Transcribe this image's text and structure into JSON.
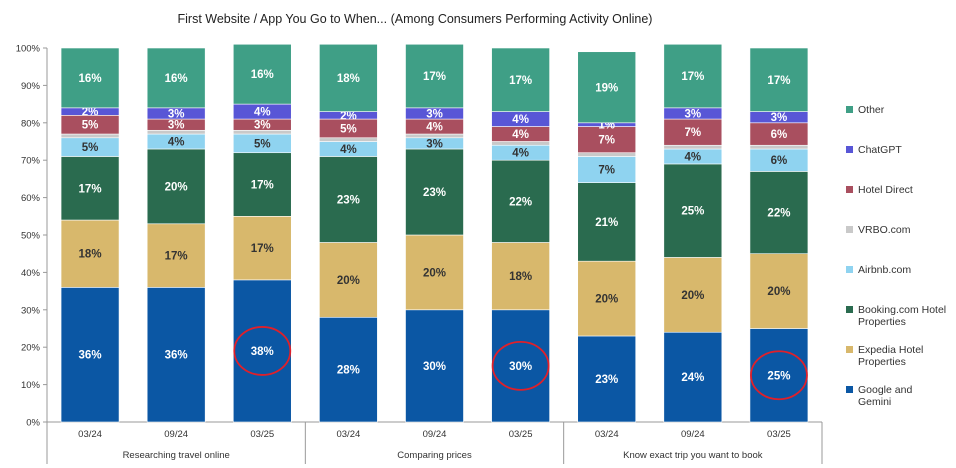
{
  "chart_data": {
    "type": "bar",
    "stacked": true,
    "title": "First Website / App You Go to When... (Among Consumers Performing Activity Online)",
    "ylim": [
      0,
      100
    ],
    "yticks": [
      "0%",
      "10%",
      "20%",
      "30%",
      "40%",
      "50%",
      "60%",
      "70%",
      "80%",
      "90%",
      "100%"
    ],
    "grid": false,
    "legend_position": "right",
    "groups": [
      {
        "label": "Researching travel online",
        "categories": [
          "03/24",
          "09/24",
          "03/25"
        ]
      },
      {
        "label": "Comparing prices",
        "categories": [
          "03/24",
          "09/24",
          "03/25"
        ]
      },
      {
        "label": "Know exact trip you want to book",
        "categories": [
          "03/24",
          "09/24",
          "03/25"
        ]
      }
    ],
    "series": [
      {
        "name": "Google and Gemini",
        "color": "#0b57a4",
        "label_color": "#ffffff",
        "values": [
          36,
          36,
          38,
          28,
          30,
          30,
          23,
          24,
          25
        ],
        "labels": [
          "36%",
          "36%",
          "38%",
          "28%",
          "30%",
          "30%",
          "23%",
          "24%",
          "25%"
        ]
      },
      {
        "name": "Expedia Hotel Properties",
        "color": "#d8b86c",
        "label_color": "#333333",
        "values": [
          18,
          17,
          17,
          20,
          20,
          18,
          20,
          20,
          20
        ],
        "labels": [
          "18%",
          "17%",
          "17%",
          "20%",
          "20%",
          "18%",
          "20%",
          "20%",
          "20%"
        ]
      },
      {
        "name": "Booking.com Hotel Properties",
        "color": "#2a6b4f",
        "label_color": "#ffffff",
        "values": [
          17,
          20,
          17,
          23,
          23,
          22,
          21,
          25,
          22
        ],
        "labels": [
          "17%",
          "20%",
          "17%",
          "23%",
          "23%",
          "22%",
          "21%",
          "25%",
          "22%"
        ]
      },
      {
        "name": "Airbnb.com",
        "color": "#8fd3f0",
        "label_color": "#333333",
        "values": [
          5,
          4,
          5,
          4,
          3,
          4,
          7,
          4,
          6
        ],
        "labels": [
          "5%",
          "4%",
          "5%",
          "4%",
          "3%",
          "4%",
          "7%",
          "4%",
          "6%"
        ]
      },
      {
        "name": "VRBO.com",
        "color": "#c9c9c9",
        "label_color": "#333333",
        "values": [
          1,
          1,
          1,
          1,
          1,
          1,
          1,
          1,
          1
        ],
        "labels": [
          "",
          "",
          "",
          "",
          "",
          "",
          "",
          "",
          ""
        ]
      },
      {
        "name": "Hotel Direct",
        "color": "#a94f5f",
        "label_color": "#ffffff",
        "values": [
          5,
          3,
          3,
          5,
          4,
          4,
          7,
          7,
          6
        ],
        "labels": [
          "5%",
          "3%",
          "3%",
          "5%",
          "4%",
          "4%",
          "7%",
          "7%",
          "6%"
        ]
      },
      {
        "name": "ChatGPT",
        "color": "#5856d6",
        "label_color": "#ffffff",
        "values": [
          2,
          3,
          4,
          2,
          3,
          4,
          1,
          3,
          3
        ],
        "labels": [
          "2%",
          "3%",
          "4%",
          "2%",
          "3%",
          "4%",
          "1%",
          "3%",
          "3%"
        ]
      },
      {
        "name": "Other",
        "color": "#3f9f86",
        "label_color": "#ffffff",
        "values": [
          16,
          16,
          16,
          18,
          17,
          17,
          19,
          17,
          17
        ],
        "labels": [
          "16%",
          "16%",
          "16%",
          "18%",
          "17%",
          "17%",
          "19%",
          "17%",
          "17%"
        ]
      }
    ],
    "legend_order": [
      {
        "name": "Other",
        "color": "#3f9f86"
      },
      {
        "name": "ChatGPT",
        "color": "#5856d6"
      },
      {
        "name": "Hotel Direct",
        "color": "#a94f5f"
      },
      {
        "name": "VRBO.com",
        "color": "#c9c9c9"
      },
      {
        "name": "Airbnb.com",
        "color": "#8fd3f0"
      },
      {
        "name": "Booking.com Hotel Properties",
        "color": "#2a6b4f"
      },
      {
        "name": "Expedia Hotel Properties",
        "color": "#d8b86c"
      },
      {
        "name": "Google and Gemini",
        "color": "#0b57a4"
      }
    ],
    "annotations": [
      {
        "type": "circle",
        "bar_index": 2,
        "series": "Google and Gemini",
        "color": "#e0202a"
      },
      {
        "type": "circle",
        "bar_index": 5,
        "series": "Google and Gemini",
        "color": "#e0202a"
      },
      {
        "type": "circle",
        "bar_index": 8,
        "series": "Google and Gemini",
        "color": "#e0202a"
      }
    ]
  }
}
